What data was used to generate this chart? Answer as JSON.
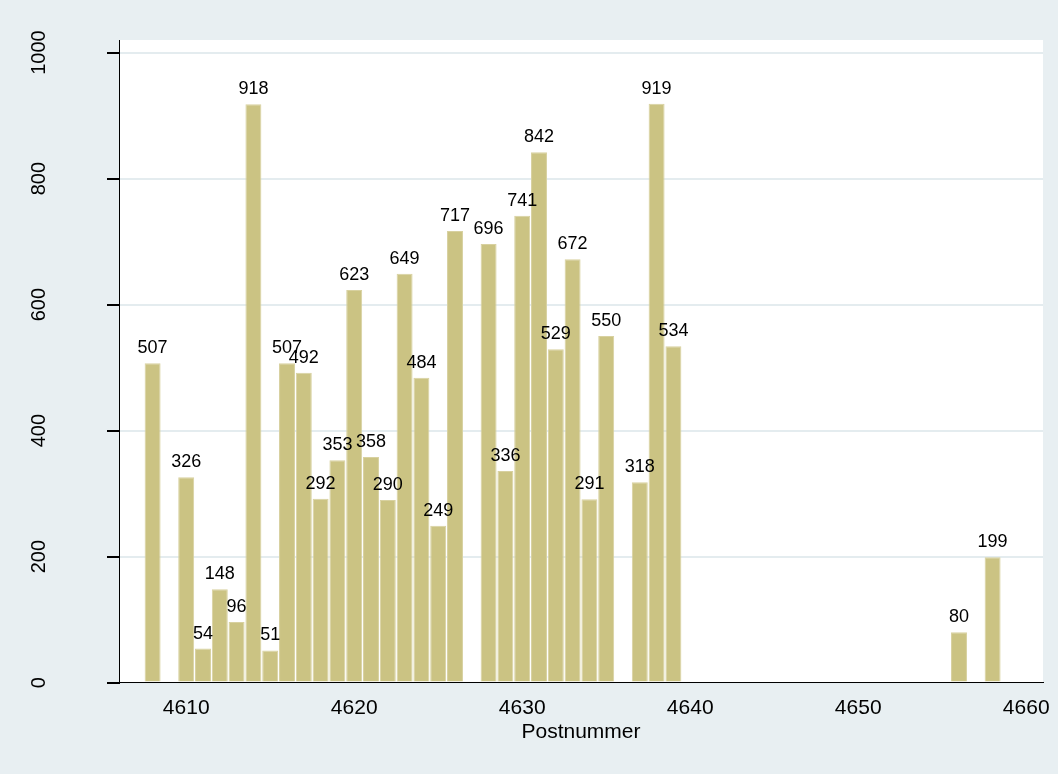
{
  "chart_data": {
    "type": "bar",
    "xlabel": "Postnummer",
    "x": [
      4608,
      4610,
      4611,
      4612,
      4613,
      4614,
      4615,
      4616,
      4617,
      4618,
      4619,
      4620,
      4621,
      4622,
      4623,
      4624,
      4625,
      4626,
      4628,
      4629,
      4630,
      4631,
      4632,
      4633,
      4634,
      4635,
      4637,
      4638,
      4639,
      4656,
      4658
    ],
    "values": [
      507,
      326,
      54,
      148,
      96,
      918,
      51,
      507,
      492,
      292,
      353,
      623,
      358,
      290,
      649,
      484,
      249,
      717,
      696,
      336,
      741,
      842,
      529,
      672,
      291,
      550,
      318,
      919,
      534,
      80,
      199
    ],
    "color": "#cbc383",
    "data_labels": true,
    "xlim": [
      4606,
      4661
    ],
    "xticks": [
      4610,
      4620,
      4630,
      4640,
      4650,
      4660
    ],
    "ylim": [
      0,
      1020
    ],
    "yticks": [
      0,
      200,
      400,
      600,
      800,
      1000
    ],
    "grid": "y",
    "legend": false
  }
}
